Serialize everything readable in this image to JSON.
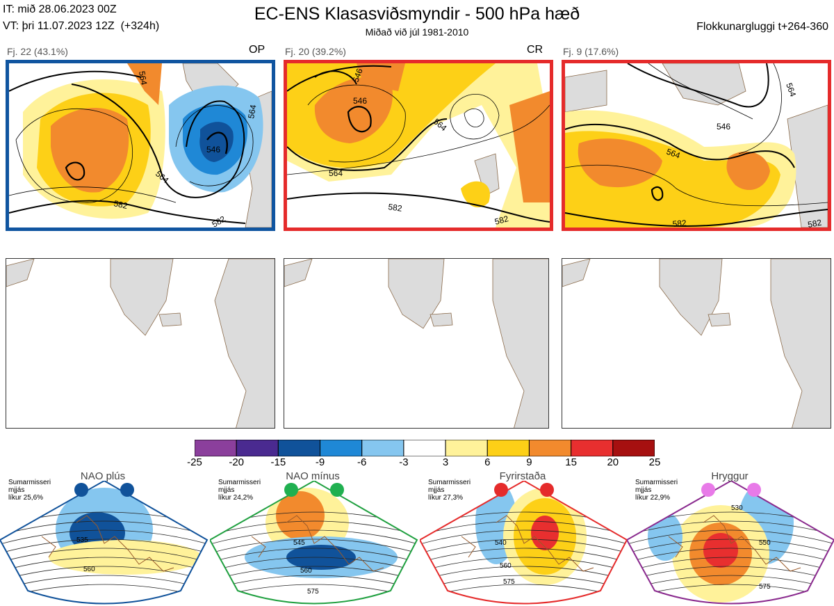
{
  "header": {
    "it": "IT: mið 28.06.2023 00Z",
    "vt": "VT: þri 11.07.2023 12Z  (+324h)",
    "title": "EC-ENS Klasasviðsmyndir - 500 hPa hæð",
    "subtitle": "Miðað við júl 1981-2010",
    "window": "Flokkunargluggi t+264-360"
  },
  "clusters": [
    {
      "label": "Fj. 22 (43.1%)",
      "tag": "OP",
      "border": "#1055a0",
      "contours": [
        "564",
        "546",
        "564",
        "564",
        "582",
        "582"
      ]
    },
    {
      "label": "Fj. 20 (39.2%)",
      "tag": "CR",
      "border": "#e52b2b",
      "contours": [
        "546",
        "546",
        "564",
        "564",
        "582",
        "582"
      ]
    },
    {
      "label": "Fj. 9 (17.6%)",
      "tag": "",
      "border": "#e52b2b",
      "contours": [
        "564",
        "546",
        "564",
        "582",
        "582"
      ]
    }
  ],
  "colorbar": {
    "ticks": [
      "-25",
      "-20",
      "-15",
      "-9",
      "-6",
      "-3",
      "3",
      "6",
      "9",
      "15",
      "20",
      "25"
    ],
    "colors": [
      "#8b3f9c",
      "#4a2a90",
      "#10529a",
      "#1f88d6",
      "#85c6ef",
      "#ffffff",
      "#fff29a",
      "#fdd017",
      "#f28a2d",
      "#e82f2f",
      "#a61010"
    ]
  },
  "regimes": [
    {
      "name": "NAO plús",
      "info": "Sumarmisseri\nmjjás\nlíkur 25,6%",
      "color": "#10529a",
      "dot": "#10529a",
      "contours": [
        "535",
        "560"
      ]
    },
    {
      "name": "NAO mínus",
      "info": "Sumarmisseri\nmjjás\nlíkur 24,2%",
      "color": "#20a040",
      "dot": "#20b050",
      "contours": [
        "545",
        "560",
        "575"
      ]
    },
    {
      "name": "Fyrirstaða",
      "info": "Sumarmisseri\nmjjás\nlíkur 27,3%",
      "color": "#e52b2b",
      "dot": "#e52b2b",
      "contours": [
        "540",
        "560",
        "575"
      ]
    },
    {
      "name": "Hryggur",
      "info": "Sumarmisseri\nmjjás\nlíkur 22,9%",
      "color": "#8a2a8e",
      "dot": "#e87ae8",
      "contours": [
        "530",
        "550",
        "575"
      ]
    }
  ]
}
